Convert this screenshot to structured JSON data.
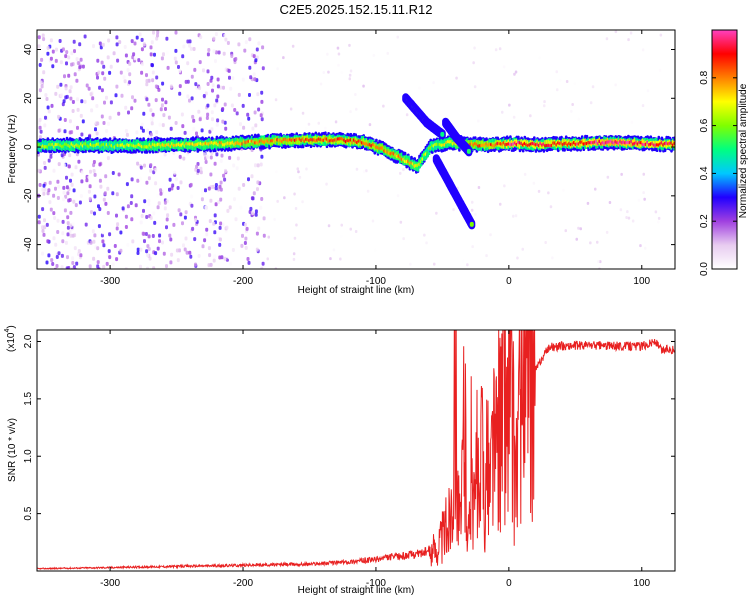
{
  "title": "C2E5.2025.152.15.11.R12",
  "chart_data": [
    {
      "type": "heatmap",
      "xlabel": "Height of straight line (km)",
      "ylabel": "Frequency (Hz)",
      "xlim": [
        -355,
        125
      ],
      "ylim": [
        -50,
        48
      ],
      "xticks": [
        -300,
        -200,
        -100,
        0,
        100
      ],
      "xtick_labels": [
        "-300",
        "-200",
        "-100",
        "0",
        "100"
      ],
      "yticks": [
        -40,
        -20,
        0,
        20,
        40
      ],
      "ytick_labels": [
        "-40",
        "-20",
        "0",
        "20",
        "40"
      ],
      "colorbar": {
        "label": "Normalized spectral amplitude",
        "range": [
          0,
          1
        ],
        "ticks": [
          0,
          0.2,
          0.4,
          0.6,
          0.8
        ],
        "tick_labels": [
          "0.0",
          "0.2",
          "0.4",
          "0.6",
          "0.8"
        ],
        "colormap": [
          "#ffffff",
          "#e8ccf0",
          "#a040e0",
          "#2000ff",
          "#00c8ff",
          "#00ff80",
          "#80ff00",
          "#ffff00",
          "#ff8000",
          "#ff0000",
          "#ff40c0"
        ]
      },
      "ridge": [
        {
          "x": -355,
          "f": 0.5,
          "a": 0.6
        },
        {
          "x": -330,
          "f": 0.8,
          "a": 0.65
        },
        {
          "x": -300,
          "f": 0.6,
          "a": 0.6
        },
        {
          "x": -270,
          "f": 0.7,
          "a": 0.7
        },
        {
          "x": -240,
          "f": 1.0,
          "a": 0.7
        },
        {
          "x": -210,
          "f": 1.5,
          "a": 0.75
        },
        {
          "x": -180,
          "f": 2.5,
          "a": 0.8
        },
        {
          "x": -150,
          "f": 3.0,
          "a": 0.85
        },
        {
          "x": -130,
          "f": 3.0,
          "a": 0.85
        },
        {
          "x": -110,
          "f": 2.0,
          "a": 0.85
        },
        {
          "x": -95,
          "f": -1.0,
          "a": 0.8
        },
        {
          "x": -80,
          "f": -5.0,
          "a": 0.75
        },
        {
          "x": -70,
          "f": -8.0,
          "a": 0.7
        },
        {
          "x": -60,
          "f": 0.0,
          "a": 0.6
        },
        {
          "x": -45,
          "f": 2.0,
          "a": 0.7
        },
        {
          "x": -30,
          "f": 1.0,
          "a": 0.8
        },
        {
          "x": -10,
          "f": 1.0,
          "a": 0.85
        },
        {
          "x": 0,
          "f": 1.5,
          "a": 0.95
        },
        {
          "x": 20,
          "f": 1.0,
          "a": 0.9
        },
        {
          "x": 50,
          "f": 1.5,
          "a": 0.9
        },
        {
          "x": 75,
          "f": 2.0,
          "a": 1.0
        },
        {
          "x": 100,
          "f": 1.5,
          "a": 0.95
        },
        {
          "x": 125,
          "f": 1.0,
          "a": 0.9
        }
      ],
      "branches": [
        {
          "x": [
            -78,
            -62,
            -50
          ],
          "f": [
            20,
            10,
            5
          ],
          "a": 0.6
        },
        {
          "x": [
            -55,
            -45,
            -35,
            -28
          ],
          "f": [
            -5,
            -15,
            -25,
            -32
          ],
          "a": 0.65
        },
        {
          "x": [
            -48,
            -40,
            -30
          ],
          "f": [
            10,
            4,
            -2
          ],
          "a": 0.6
        }
      ],
      "noise_region": {
        "x": [
          -355,
          -185
        ],
        "f": [
          -50,
          48
        ],
        "a_max": 0.3
      }
    },
    {
      "type": "line",
      "xlabel": "Height of straight line (km)",
      "ylabel": "SNR (10 * v/v)",
      "y_multiplier_label": "(x10",
      "y_multiplier_exp": "4",
      "y_multiplier_close": ")",
      "xlim": [
        -355,
        125
      ],
      "ylim": [
        0,
        21000
      ],
      "xticks": [
        -300,
        -200,
        -100,
        0,
        100
      ],
      "xtick_labels": [
        "-300",
        "-200",
        "-100",
        "0",
        "100"
      ],
      "yticks": [
        5000,
        10000,
        15000,
        20000
      ],
      "ytick_labels": [
        "0.5",
        "1.0",
        "1.5",
        "2.0"
      ],
      "series": [
        {
          "color": "#e82020",
          "x": [
            -355,
            -300,
            -200,
            -150,
            -120,
            -100,
            -90,
            -80,
            -70,
            -60,
            -55,
            -50,
            -45,
            -42,
            -40,
            -38,
            -36,
            -34,
            -32,
            -30,
            -28,
            -26,
            -24,
            -22,
            -20,
            -18,
            -16,
            -14,
            -12,
            -10,
            -8,
            -6,
            -4,
            -2,
            0,
            2,
            5,
            10,
            15,
            20,
            25,
            30,
            40,
            60,
            80,
            100,
            110,
            115,
            120,
            125
          ],
          "y": [
            200,
            300,
            500,
            600,
            800,
            1000,
            1200,
            1300,
            1500,
            1700,
            2000,
            3000,
            4500,
            9000,
            18000,
            6000,
            3000,
            14000,
            9000,
            2500,
            11000,
            5000,
            9000,
            4500,
            12000,
            5500,
            10000,
            7000,
            13000,
            9000,
            15000,
            11000,
            18000,
            12000,
            17000,
            14000,
            9000,
            16000,
            15000,
            17500,
            18500,
            19500,
            19600,
            19700,
            19600,
            19600,
            20000,
            19200,
            19400,
            19200
          ]
        }
      ]
    }
  ]
}
